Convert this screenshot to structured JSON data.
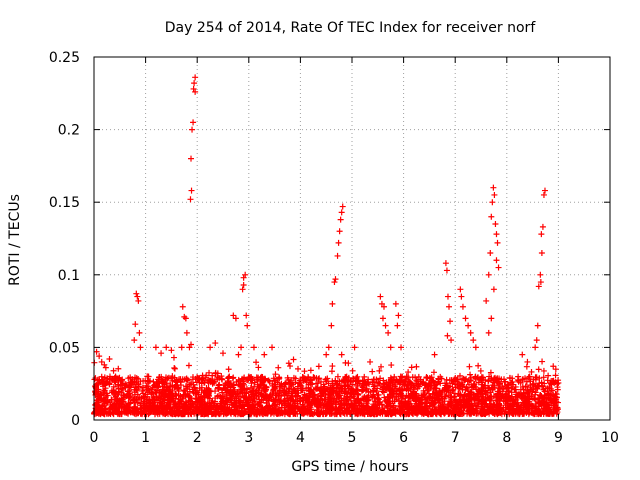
{
  "chart_data": {
    "type": "scatter",
    "title": "Day 254 of 2014, Rate Of TEC Index for receiver norf",
    "xlabel": "GPS time / hours",
    "ylabel": "ROTI / TECUs",
    "xlim": [
      0,
      10
    ],
    "ylim": [
      0,
      0.25
    ],
    "x_ticks": [
      0,
      1,
      2,
      3,
      4,
      5,
      6,
      7,
      8,
      9,
      10
    ],
    "y_ticks": [
      0,
      0.05,
      0.1,
      0.15,
      0.2,
      0.25
    ],
    "x_tick_labels": [
      "0",
      "1",
      "2",
      "3",
      "4",
      "5",
      "6",
      "7",
      "8",
      "9",
      "10"
    ],
    "y_tick_labels": [
      "0",
      "0.05",
      "0.1",
      "0.15",
      "0.2",
      "0.25"
    ],
    "grid": true,
    "marker": "+",
    "color": "#ff0000",
    "baseline_range": [
      0.004,
      0.03
    ],
    "x_range_of_data": [
      0,
      9
    ],
    "series": [
      {
        "name": "ROTI",
        "values_note": "dense baseline approx. 0.005-0.03 TECU across 0-9 h",
        "peak_points": [
          [
            0.05,
            0.047
          ],
          [
            0.1,
            0.044
          ],
          [
            0.15,
            0.04
          ],
          [
            0.2,
            0.038
          ],
          [
            0.3,
            0.042
          ],
          [
            0.82,
            0.087
          ],
          [
            0.84,
            0.085
          ],
          [
            0.86,
            0.082
          ],
          [
            0.8,
            0.066
          ],
          [
            0.78,
            0.055
          ],
          [
            0.88,
            0.06
          ],
          [
            0.9,
            0.05
          ],
          [
            1.2,
            0.05
          ],
          [
            1.3,
            0.046
          ],
          [
            1.4,
            0.05
          ],
          [
            1.5,
            0.048
          ],
          [
            1.55,
            0.043
          ],
          [
            1.72,
            0.078
          ],
          [
            1.75,
            0.071
          ],
          [
            1.78,
            0.07
          ],
          [
            1.8,
            0.06
          ],
          [
            1.7,
            0.05
          ],
          [
            1.85,
            0.05
          ],
          [
            1.88,
            0.052
          ],
          [
            1.88,
            0.18
          ],
          [
            1.9,
            0.2
          ],
          [
            1.92,
            0.205
          ],
          [
            1.94,
            0.232
          ],
          [
            1.96,
            0.236
          ],
          [
            1.96,
            0.226
          ],
          [
            1.93,
            0.228
          ],
          [
            1.87,
            0.152
          ],
          [
            1.89,
            0.158
          ],
          [
            2.25,
            0.05
          ],
          [
            2.35,
            0.053
          ],
          [
            2.5,
            0.046
          ],
          [
            2.7,
            0.072
          ],
          [
            2.75,
            0.07
          ],
          [
            2.8,
            0.045
          ],
          [
            2.85,
            0.05
          ],
          [
            2.9,
            0.098
          ],
          [
            2.93,
            0.1
          ],
          [
            2.9,
            0.093
          ],
          [
            2.95,
            0.072
          ],
          [
            2.97,
            0.065
          ],
          [
            2.88,
            0.09
          ],
          [
            3.1,
            0.05
          ],
          [
            3.3,
            0.045
          ],
          [
            3.45,
            0.05
          ],
          [
            4.5,
            0.045
          ],
          [
            4.55,
            0.05
          ],
          [
            4.6,
            0.065
          ],
          [
            4.62,
            0.08
          ],
          [
            4.66,
            0.095
          ],
          [
            4.68,
            0.097
          ],
          [
            4.72,
            0.113
          ],
          [
            4.74,
            0.122
          ],
          [
            4.76,
            0.13
          ],
          [
            4.78,
            0.138
          ],
          [
            4.8,
            0.143
          ],
          [
            4.82,
            0.147
          ],
          [
            4.8,
            0.045
          ],
          [
            5.05,
            0.05
          ],
          [
            5.35,
            0.04
          ],
          [
            5.55,
            0.085
          ],
          [
            5.58,
            0.08
          ],
          [
            5.62,
            0.078
          ],
          [
            5.6,
            0.07
          ],
          [
            5.65,
            0.065
          ],
          [
            5.7,
            0.06
          ],
          [
            5.75,
            0.05
          ],
          [
            5.85,
            0.08
          ],
          [
            5.9,
            0.072
          ],
          [
            5.88,
            0.065
          ],
          [
            5.95,
            0.05
          ],
          [
            6.6,
            0.045
          ],
          [
            6.82,
            0.108
          ],
          [
            6.84,
            0.103
          ],
          [
            6.86,
            0.085
          ],
          [
            6.88,
            0.078
          ],
          [
            6.9,
            0.068
          ],
          [
            6.85,
            0.058
          ],
          [
            6.92,
            0.055
          ],
          [
            7.1,
            0.09
          ],
          [
            7.12,
            0.085
          ],
          [
            7.15,
            0.078
          ],
          [
            7.2,
            0.07
          ],
          [
            7.25,
            0.065
          ],
          [
            7.3,
            0.06
          ],
          [
            7.35,
            0.055
          ],
          [
            7.4,
            0.05
          ],
          [
            7.6,
            0.082
          ],
          [
            7.65,
            0.1
          ],
          [
            7.68,
            0.115
          ],
          [
            7.7,
            0.14
          ],
          [
            7.72,
            0.15
          ],
          [
            7.74,
            0.16
          ],
          [
            7.76,
            0.155
          ],
          [
            7.78,
            0.135
          ],
          [
            7.8,
            0.128
          ],
          [
            7.82,
            0.122
          ],
          [
            7.8,
            0.11
          ],
          [
            7.84,
            0.105
          ],
          [
            7.75,
            0.09
          ],
          [
            7.7,
            0.07
          ],
          [
            7.65,
            0.06
          ],
          [
            8.3,
            0.045
          ],
          [
            8.4,
            0.04
          ],
          [
            8.55,
            0.05
          ],
          [
            8.58,
            0.055
          ],
          [
            8.6,
            0.065
          ],
          [
            8.62,
            0.092
          ],
          [
            8.65,
            0.1
          ],
          [
            8.67,
            0.128
          ],
          [
            8.7,
            0.133
          ],
          [
            8.72,
            0.155
          ],
          [
            8.74,
            0.158
          ],
          [
            8.68,
            0.115
          ],
          [
            8.66,
            0.095
          ],
          [
            8.9,
            0.037
          ],
          [
            8.95,
            0.035
          ]
        ]
      }
    ]
  }
}
